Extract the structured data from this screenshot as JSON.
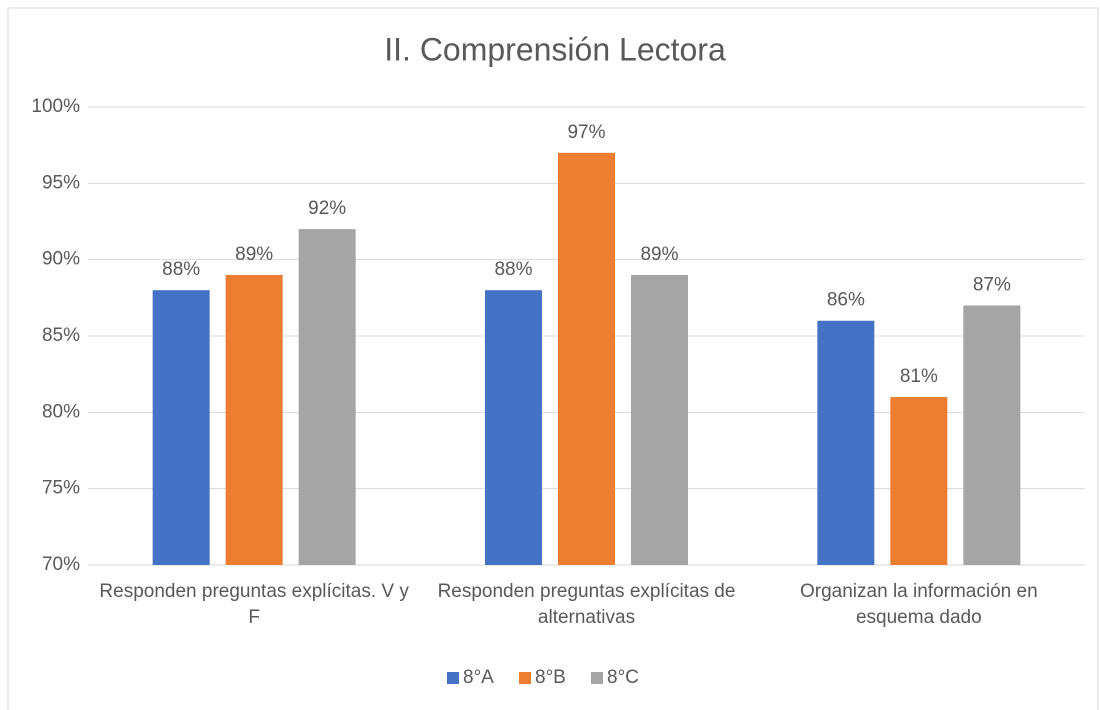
{
  "chart_data": {
    "type": "bar",
    "title": "II. Comprensión Lectora",
    "categories": [
      "Responden preguntas explícitas. V y F",
      "Responden preguntas explícitas de alternativas",
      "Organizan la información en esquema dado"
    ],
    "series": [
      {
        "name": "8°A",
        "color": "#4472c4",
        "values": [
          88,
          88,
          86
        ],
        "value_labels": [
          "88%",
          "88%",
          "86%"
        ]
      },
      {
        "name": "8°B",
        "color": "#ed7d31",
        "values": [
          89,
          97,
          81
        ],
        "value_labels": [
          "89%",
          "97%",
          "81%"
        ]
      },
      {
        "name": "8°C",
        "color": "#a5a5a5",
        "values": [
          92,
          89,
          87
        ],
        "value_labels": [
          "92%",
          "89%",
          "87%"
        ]
      }
    ],
    "ylim": [
      70,
      100
    ],
    "yticks": [
      {
        "value": 70,
        "label": "70%"
      },
      {
        "value": 75,
        "label": "75%"
      },
      {
        "value": 80,
        "label": "80%"
      },
      {
        "value": 85,
        "label": "85%"
      },
      {
        "value": 90,
        "label": "90%"
      },
      {
        "value": 95,
        "label": "95%"
      },
      {
        "value": 100,
        "label": "100%"
      }
    ],
    "grid": true,
    "legend": "bottom"
  }
}
